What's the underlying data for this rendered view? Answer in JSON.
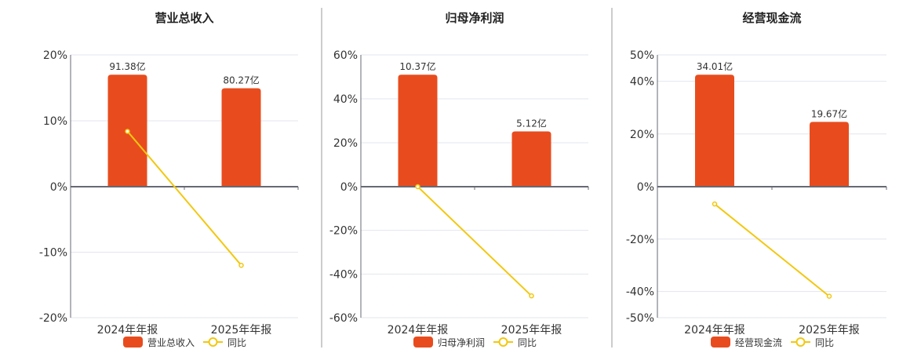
{
  "colors": {
    "bar": "#E84C1E",
    "line": "#F2C811",
    "grid": "#E3E6EE",
    "axis": "#666A73",
    "divider": "#999999"
  },
  "chart_data": [
    {
      "type": "bar+line",
      "title": "营业总收入",
      "categories": [
        "2024年年报",
        "2025年年报"
      ],
      "bar_series": {
        "name": "营业总收入",
        "values": [
          91.38,
          80.27
        ],
        "labels": [
          "91.38亿",
          "80.27亿"
        ],
        "unit": "亿"
      },
      "line_series": {
        "name": "同比",
        "values": [
          8.4,
          -12.0
        ],
        "unit": "%"
      },
      "y_ticks": [
        20,
        10,
        0,
        -10,
        -20
      ],
      "y_tick_labels": [
        "20%",
        "10%",
        "0%",
        "-10%",
        "-20%"
      ],
      "ylim": [
        -20,
        20
      ],
      "grid": true,
      "legend": "bottom"
    },
    {
      "type": "bar+line",
      "title": "归母净利润",
      "categories": [
        "2024年年报",
        "2025年年报"
      ],
      "bar_series": {
        "name": "归母净利润",
        "values": [
          10.37,
          5.12
        ],
        "labels": [
          "10.37亿",
          "5.12亿"
        ],
        "unit": "亿"
      },
      "line_series": {
        "name": "同比",
        "values": [
          0.0,
          -50.0
        ],
        "unit": "%"
      },
      "y_ticks": [
        60,
        40,
        20,
        0,
        -20,
        -40,
        -60
      ],
      "y_tick_labels": [
        "60%",
        "40%",
        "20%",
        "0%",
        "-20%",
        "-40%",
        "-60%"
      ],
      "ylim": [
        -60,
        60
      ],
      "grid": true,
      "legend": "bottom"
    },
    {
      "type": "bar+line",
      "title": "经营现金流",
      "categories": [
        "2024年年报",
        "2025年年报"
      ],
      "bar_series": {
        "name": "经营现金流",
        "values": [
          34.01,
          19.67
        ],
        "labels": [
          "34.01亿",
          "19.67亿"
        ],
        "unit": "亿"
      },
      "line_series": {
        "name": "同比",
        "values": [
          -6.6,
          -41.8
        ],
        "unit": "%"
      },
      "y_ticks": [
        50,
        40,
        20,
        0,
        -20,
        -40,
        -50
      ],
      "y_tick_labels": [
        "50%",
        "40%",
        "20%",
        "0%",
        "-20%",
        "-40%",
        "-50%"
      ],
      "ylim": [
        -50,
        50
      ],
      "grid": true,
      "legend": "bottom"
    }
  ]
}
